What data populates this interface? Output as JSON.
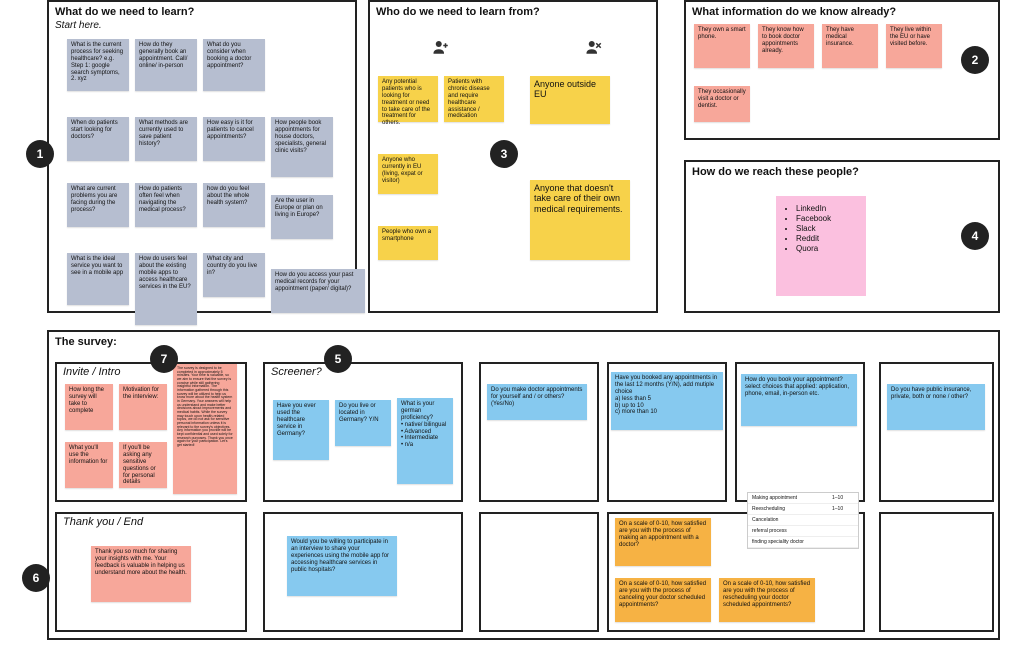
{
  "colors": {
    "slate": "#b6bed0",
    "yellow": "#f7d24a",
    "salmon": "#f7a79a",
    "blue": "#86c9ef",
    "orange": "#f6b244",
    "pink": "#fbc0df",
    "badge": "#222222",
    "border": "#222222"
  },
  "badges": [
    "1",
    "2",
    "3",
    "4",
    "5",
    "6",
    "7"
  ],
  "panels": {
    "learn": {
      "title": "What do we need to learn?",
      "subtitle": "Start here.",
      "notes": [
        "What is the current process for seeking healthcare? e.g. Step 1: google search symptoms, 2. xyz",
        "How do they generally book an appointment. Call/ online/ in-person",
        "What do you consider when booking a doctor appointment?",
        "When do patients start looking for doctors?",
        "What methods are currently used to save patient history?",
        "How easy is it for patients to cancel appointments?",
        "How people book appointments for house doctors, specialists, general clinic visits?",
        "What are current problems you are facing during the process?",
        "How do patients often feel when navigating the medical process?",
        "how do you feel about the whole health system?",
        "Are the user in Europe or plan on living in Europe?",
        "What is the ideal service you want to see in a mobile app",
        "How do users feel about the existing mobile apps to access healthcare services in the EU?",
        "What city and country do you live in?",
        "How do you access your past medical records for your appointment (paper/ digital)?"
      ]
    },
    "who": {
      "title": "Who do we need to learn from?",
      "left_notes": [
        "Any potential patients who is looking for treatment or need to take care of the treatment for others.",
        "Patients with chronic disease and require healthcare assistance / medication",
        "Anyone who currently in EU (living, expat or visitor)",
        "People who own a smartphone"
      ],
      "right_notes": [
        "Anyone outside EU",
        "Anyone that doesn't take care of their own medical requirements."
      ]
    },
    "known": {
      "title": "What information do we know already?",
      "notes": [
        "They own a smart phone.",
        "They know how to book doctor appointments already.",
        "They have medical insurance.",
        "They live within the EU or have visited before.",
        "They occasionally visit a doctor or dentist."
      ]
    },
    "reach": {
      "title": "How do we reach these people?",
      "items": [
        "LinkedIn",
        "Facebook",
        "Slack",
        "Reddit",
        "Quora"
      ]
    },
    "survey": {
      "title": "The survey:"
    },
    "invite": {
      "label": "Invite / Intro",
      "notes": [
        "How long the survey will take to complete",
        "Motivation for the interview:",
        "What you'll use the information for",
        "If you'll be asking any sensitive questions or for personal details"
      ],
      "long_note": "The survey is designed to be completed in approximately 5 minutes. Your time is valuable, so we aim to ensure that the survey is concise while still gathering insightful information. The information gathered through this survey will be utilized to help us know more about the health system in Germany. Your answers will help us understand and make better decisions about improvements and medical habits. While the survey may touch upon health-related topics, we do not ask for sensitive personal information unless it is relevant to the survey's objectives. Any information you provide will be kept confidential and used solely for research purposes. Thank you once again for your participation. Let's get started!"
    },
    "screener": {
      "label": "Screener?",
      "notes": [
        "Have you ever used the healthcare service in Germany?",
        "Do you live or located in Germany? Y/N",
        "What is your german proficiency?\n• native/ bilingual\n• Advanced\n• Intermediate\n• n/a"
      ]
    },
    "q_blue": [
      "Do you make doctor appointments for yourself and / or others? (Yes/No)",
      "Have you booked any appointments in the last 12 months (Y/N), add mutiple choice\na) less than 5\nb) up to 10\nc) more than 10",
      "How do you book your appointment?\nselect choices that applied: application, phone, email, in-person etc.",
      "Do you have public insurance, private, both or none / other?"
    ],
    "followup_blue": "Would you be willing to participate in an interview to share your experiences using the mobile app for accessing healthcare services in public hospitals?",
    "q_orange": [
      "On a scale of 0-10, how satisfied are you with the process of making an appointment with a doctor?",
      "On a scale of 0-10, how satisfied are you with the process of canceling your doctor scheduled appointments?",
      "On a scale of 0-10, how satisfied are you with the process of rescheduling your doctor scheduled appointments?"
    ],
    "thankyou": {
      "label": "Thank you / End",
      "note": "Thank you so much for sharing your insights with me. Your feedback is valuable in helping us understand more about the health."
    },
    "scale_table": {
      "rows": [
        [
          "Making appointment",
          "1–10"
        ],
        [
          "Reescheduling",
          "1–10"
        ],
        [
          "Cancelation",
          ""
        ],
        [
          "referral process",
          ""
        ],
        [
          "finding speciality doctor",
          ""
        ]
      ]
    }
  }
}
